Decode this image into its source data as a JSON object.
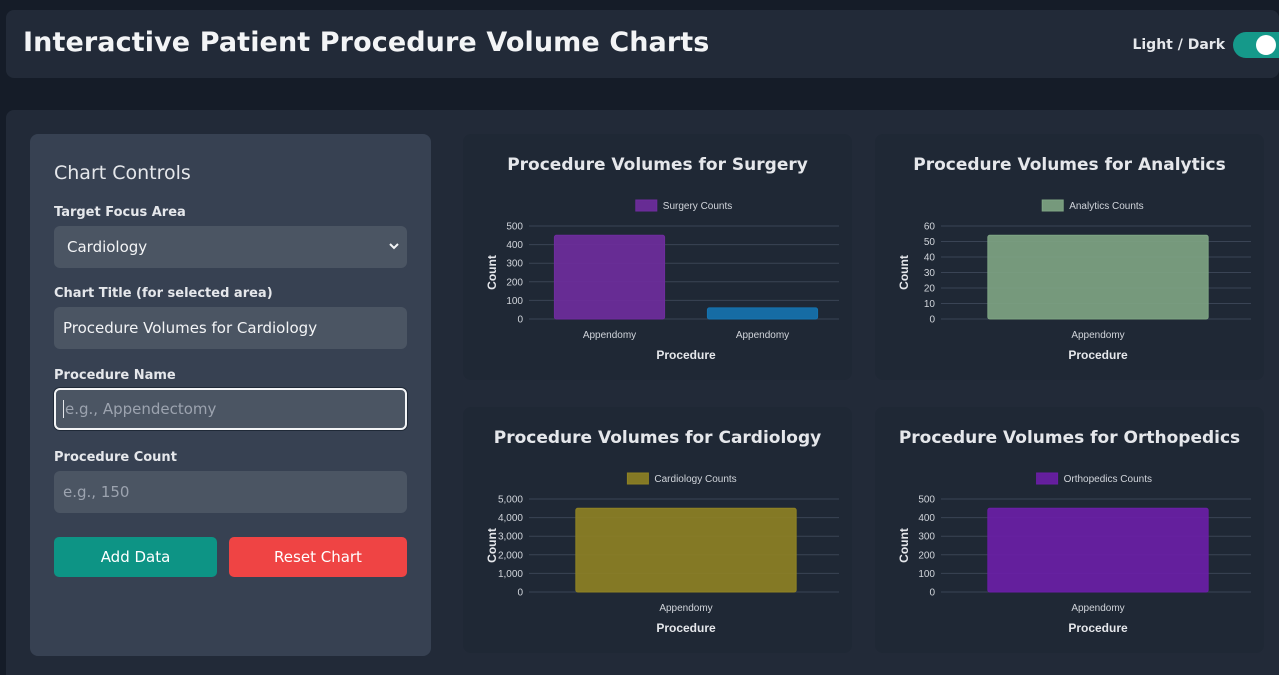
{
  "header": {
    "title": "Interactive Patient Procedure Volume Charts",
    "toggle_label": "Light / Dark"
  },
  "controls": {
    "heading": "Chart Controls",
    "focus_label": "Target Focus Area",
    "focus_value": "Cardiology",
    "title_label": "Chart Title (for selected area)",
    "title_value": "Procedure Volumes for Cardiology",
    "procedure_label": "Procedure Name",
    "procedure_placeholder": "e.g., Appendectomy",
    "count_label": "Procedure Count",
    "count_placeholder": "e.g., 150",
    "add_label": "Add Data",
    "reset_label": "Reset Chart"
  },
  "colors": {
    "accent": "#0d9485",
    "danger": "#ef4444"
  },
  "chart_data": [
    {
      "type": "bar",
      "title": "Procedure Volumes for Surgery",
      "legend": "Surgery Counts",
      "xlabel": "Procedure",
      "ylabel": "Count",
      "categories": [
        "Appendomy",
        "Appendomy"
      ],
      "values": [
        450,
        60
      ],
      "colors": [
        "#6f2c9e",
        "#1573b0"
      ],
      "ylim": [
        0,
        500
      ],
      "ticks": [
        "0",
        "100",
        "200",
        "300",
        "400",
        "500"
      ],
      "legend_color": "#6f2c9e",
      "grid": true
    },
    {
      "type": "bar",
      "title": "Procedure Volumes for Analytics",
      "legend": "Analytics Counts",
      "xlabel": "Procedure",
      "ylabel": "Count",
      "categories": [
        "Appendomy"
      ],
      "values": [
        54
      ],
      "colors": [
        "#7fa584"
      ],
      "ylim": [
        0,
        60
      ],
      "ticks": [
        "0",
        "10",
        "20",
        "30",
        "40",
        "50",
        "60"
      ],
      "legend_color": "#7fa584",
      "grid": true
    },
    {
      "type": "bar",
      "title": "Procedure Volumes for Cardiology",
      "legend": "Cardiology Counts",
      "xlabel": "Procedure",
      "ylabel": "Count",
      "categories": [
        "Appendomy"
      ],
      "values": [
        4500
      ],
      "colors": [
        "#8f8223"
      ],
      "ylim": [
        0,
        5000
      ],
      "ticks": [
        "0",
        "1,000",
        "2,000",
        "3,000",
        "4,000",
        "5,000"
      ],
      "legend_color": "#8f8223",
      "grid": true
    },
    {
      "type": "bar",
      "title": "Procedure Volumes for Orthopedics",
      "legend": "Orthopedics Counts",
      "xlabel": "Procedure",
      "ylabel": "Count",
      "categories": [
        "Appendomy"
      ],
      "values": [
        450
      ],
      "colors": [
        "#6b1ea8"
      ],
      "ylim": [
        0,
        500
      ],
      "ticks": [
        "0",
        "100",
        "200",
        "300",
        "400",
        "500"
      ],
      "legend_color": "#6b1ea8",
      "grid": true
    }
  ]
}
